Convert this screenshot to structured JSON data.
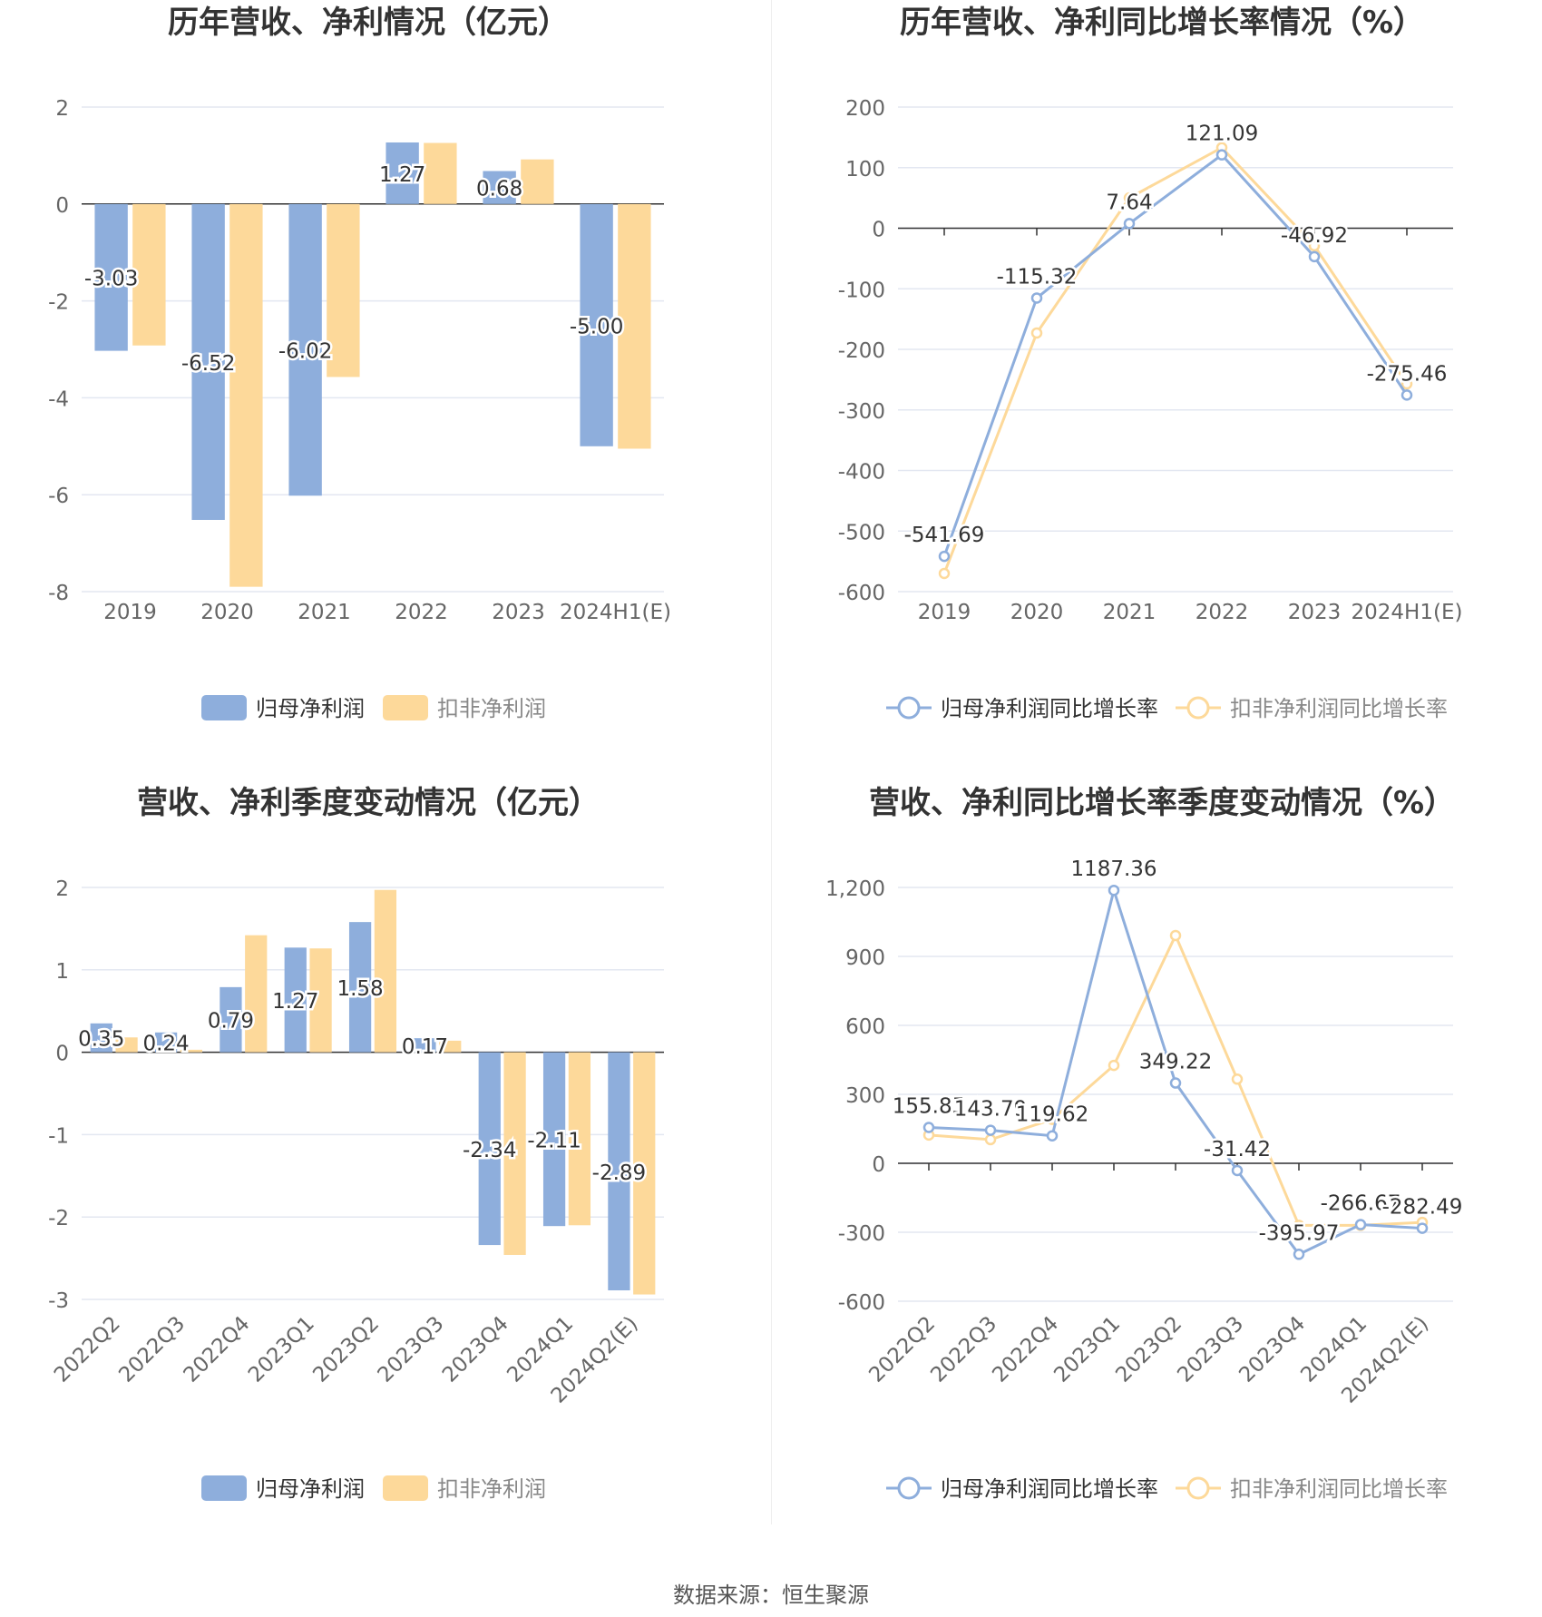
{
  "colors": {
    "blue": "#8eaedc",
    "yellow": "#fdd99a",
    "grid": "#e3e7f1",
    "axis": "#333333",
    "tick": "#666666",
    "title": "#333333"
  },
  "source": {
    "label": "数据来源：",
    "value": "恒生聚源"
  },
  "chart_data": [
    {
      "type": "bar",
      "title": "历年营收、净利情况（亿元）",
      "categories": [
        "2019",
        "2020",
        "2021",
        "2022",
        "2023",
        "2024H1(E)"
      ],
      "series": [
        {
          "name": "归母净利润",
          "color": "#8eaedc",
          "values": [
            -3.03,
            -6.52,
            -6.02,
            1.27,
            0.68,
            -5.0
          ],
          "labels": [
            "-3.03",
            "-6.52",
            "-6.02",
            "1.27",
            "0.68",
            "-5.00"
          ]
        },
        {
          "name": "扣非净利润",
          "color": "#fdd99a",
          "values": [
            -2.92,
            -7.9,
            -3.57,
            1.26,
            0.92,
            -5.05
          ]
        }
      ],
      "yticks": [
        "2",
        "0",
        "-2",
        "-4",
        "-6",
        "-8"
      ],
      "ylim": [
        -8,
        2
      ],
      "grid": true,
      "legend": "bottom"
    },
    {
      "type": "line",
      "title": "历年营收、净利同比增长率情况（%）",
      "categories": [
        "2019",
        "2020",
        "2021",
        "2022",
        "2023",
        "2024H1(E)"
      ],
      "series": [
        {
          "name": "归母净利润同比增长率",
          "color": "#8eaedc",
          "values": [
            -541.69,
            -115.32,
            7.64,
            121.09,
            -46.92,
            -275.46
          ],
          "labels": [
            "-541.69",
            "-115.32",
            "7.64",
            "121.09",
            "-46.92",
            "-275.46"
          ]
        },
        {
          "name": "扣非净利润同比增长率",
          "color": "#fdd99a",
          "values": [
            -570,
            -173,
            50,
            133,
            -29,
            -257
          ]
        }
      ],
      "yticks": [
        "200",
        "100",
        "0",
        "-100",
        "-200",
        "-300",
        "-400",
        "-500",
        "-600"
      ],
      "ylim": [
        -600,
        200
      ],
      "grid": true,
      "legend": "bottom"
    },
    {
      "type": "bar",
      "title": "营收、净利季度变动情况（亿元）",
      "categories": [
        "2022Q2",
        "2022Q3",
        "2022Q4",
        "2023Q1",
        "2023Q2",
        "2023Q3",
        "2023Q4",
        "2024Q1",
        "2024Q2(E)"
      ],
      "series": [
        {
          "name": "归母净利润",
          "color": "#8eaedc",
          "values": [
            0.35,
            0.24,
            0.79,
            1.27,
            1.58,
            0.17,
            -2.34,
            -2.11,
            -2.89
          ],
          "labels": [
            "0.35",
            "0.24",
            "0.79",
            "1.27",
            "1.58",
            "0.17",
            "-2.34",
            "-2.11",
            "-2.89"
          ]
        },
        {
          "name": "扣非净利润",
          "color": "#fdd99a",
          "values": [
            0.18,
            0.03,
            1.42,
            1.26,
            1.97,
            0.14,
            -2.46,
            -2.1,
            -2.94
          ]
        }
      ],
      "yticks": [
        "2",
        "1",
        "0",
        "-1",
        "-2",
        "-3"
      ],
      "ylim": [
        -3,
        2
      ],
      "grid": true,
      "legend": "bottom"
    },
    {
      "type": "line",
      "title": "营收、净利同比增长率季度变动情况（%）",
      "categories": [
        "2022Q2",
        "2022Q3",
        "2022Q4",
        "2023Q1",
        "2023Q2",
        "2023Q3",
        "2023Q4",
        "2024Q1",
        "2024Q2(E)"
      ],
      "series": [
        {
          "name": "归母净利润同比增长率",
          "color": "#8eaedc",
          "values": [
            155.85,
            143.79,
            119.62,
            1187.36,
            349.22,
            -31.42,
            -395.97,
            -266.67,
            -282.49
          ],
          "labels": [
            "155.85",
            "143.79",
            "119.62",
            "1187.36",
            "349.22",
            "-31.42",
            "-395.97",
            "-266.67",
            "-282.49"
          ]
        },
        {
          "name": "扣非净利润同比增长率",
          "color": "#fdd99a",
          "values": [
            123,
            103,
            191,
            426,
            991,
            366,
            -270,
            -270,
            -257
          ]
        }
      ],
      "yticks": [
        "1,200",
        "900",
        "600",
        "300",
        "0",
        "-300",
        "-600"
      ],
      "ylim": [
        -600,
        1200
      ],
      "grid": true,
      "legend": "bottom"
    }
  ]
}
